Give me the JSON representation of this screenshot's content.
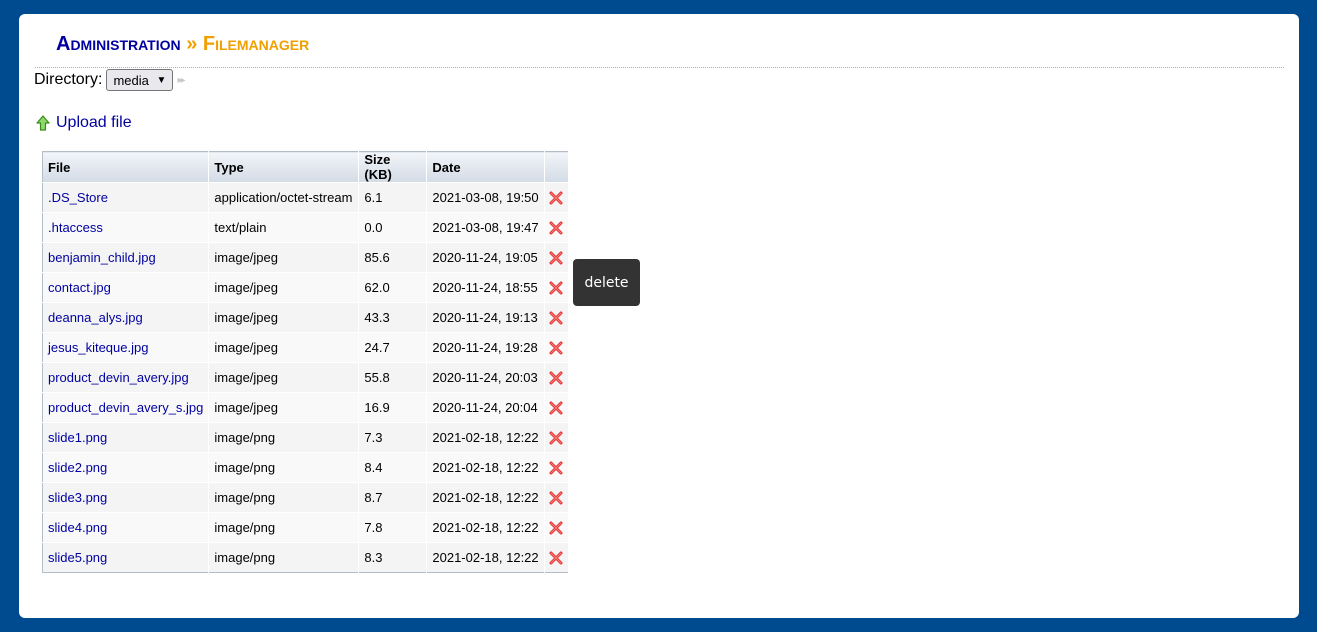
{
  "header": {
    "crumb_admin": "Administration",
    "separator": "»",
    "crumb_current": "Filemanager"
  },
  "directory": {
    "label": "Directory:",
    "selected": "media",
    "caret": "⌄",
    "nav_glyph": "▸▸"
  },
  "upload": {
    "icon": "arrow-up-icon",
    "label": "Upload file"
  },
  "table": {
    "headers": [
      "File",
      "Type",
      "Size (KB)",
      "Date",
      ""
    ],
    "rows": [
      {
        "file": ".DS_Store",
        "type": "application/octet-stream",
        "size": "6.1",
        "date": "2021-03-08, 19:50"
      },
      {
        "file": ".htaccess",
        "type": "text/plain",
        "size": "0.0",
        "date": "2021-03-08, 19:47"
      },
      {
        "file": "benjamin_child.jpg",
        "type": "image/jpeg",
        "size": "85.6",
        "date": "2020-11-24, 19:05"
      },
      {
        "file": "contact.jpg",
        "type": "image/jpeg",
        "size": "62.0",
        "date": "2020-11-24, 18:55"
      },
      {
        "file": "deanna_alys.jpg",
        "type": "image/jpeg",
        "size": "43.3",
        "date": "2020-11-24, 19:13"
      },
      {
        "file": "jesus_kiteque.jpg",
        "type": "image/jpeg",
        "size": "24.7",
        "date": "2020-11-24, 19:28"
      },
      {
        "file": "product_devin_avery.jpg",
        "type": "image/jpeg",
        "size": "55.8",
        "date": "2020-11-24, 20:03"
      },
      {
        "file": "product_devin_avery_s.jpg",
        "type": "image/jpeg",
        "size": "16.9",
        "date": "2020-11-24, 20:04"
      },
      {
        "file": "slide1.png",
        "type": "image/png",
        "size": "7.3",
        "date": "2021-02-18, 12:22"
      },
      {
        "file": "slide2.png",
        "type": "image/png",
        "size": "8.4",
        "date": "2021-02-18, 12:22"
      },
      {
        "file": "slide3.png",
        "type": "image/png",
        "size": "8.7",
        "date": "2021-02-18, 12:22"
      },
      {
        "file": "slide4.png",
        "type": "image/png",
        "size": "7.8",
        "date": "2021-02-18, 12:22"
      },
      {
        "file": "slide5.png",
        "type": "image/png",
        "size": "8.3",
        "date": "2021-02-18, 12:22"
      }
    ],
    "delete_icon": "delete-x-icon"
  },
  "tooltip": {
    "text": "delete"
  },
  "colors": {
    "frame": "#004a8f",
    "link": "#0000a0",
    "accent": "#f0a000",
    "delete": "#e03030"
  }
}
